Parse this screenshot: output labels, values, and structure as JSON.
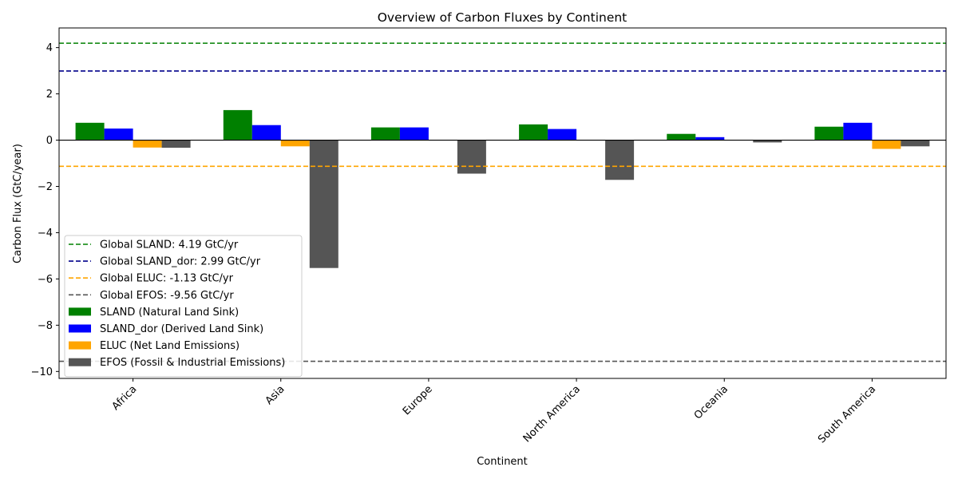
{
  "chart_data": {
    "type": "bar",
    "title": "Overview of Carbon Fluxes by Continent",
    "xlabel": "Continent",
    "ylabel": "Carbon Flux (GtC/year)",
    "ylim": [
      -10.3,
      4.85
    ],
    "yticks": [
      -10,
      -8,
      -6,
      -4,
      -2,
      0,
      2,
      4
    ],
    "categories": [
      "Africa",
      "Asia",
      "Europe",
      "North America",
      "Oceania",
      "South America"
    ],
    "series": [
      {
        "name": "SLAND (Natural Land Sink)",
        "color": "#008000",
        "values": [
          0.75,
          1.3,
          0.55,
          0.68,
          0.27,
          0.58
        ]
      },
      {
        "name": "SLAND_dor (Derived Land Sink)",
        "color": "#0000ff",
        "values": [
          0.5,
          0.65,
          0.55,
          0.48,
          0.13,
          0.75
        ]
      },
      {
        "name": "ELUC (Net Land Emissions)",
        "color": "#ffa500",
        "values": [
          -0.32,
          -0.27,
          0.0,
          0.0,
          0.0,
          -0.38
        ]
      },
      {
        "name": "EFOS (Fossil & Industrial Emissions)",
        "color": "#555555",
        "values": [
          -0.33,
          -5.53,
          -1.45,
          -1.72,
          -0.1,
          -0.27
        ]
      }
    ],
    "reference_lines": [
      {
        "label": "Global SLAND: 4.19 GtC/yr",
        "value": 4.19,
        "color": "#008000"
      },
      {
        "label": "Global SLAND_dor: 2.99 GtC/yr",
        "value": 2.99,
        "color": "#00008b"
      },
      {
        "label": "Global ELUC: -1.13 GtC/yr",
        "value": -1.13,
        "color": "#ffa500"
      },
      {
        "label": "Global EFOS: -9.56 GtC/yr",
        "value": -9.56,
        "color": "#555555"
      }
    ],
    "zero_line": true,
    "grid": false,
    "legend_position": "lower-left"
  }
}
